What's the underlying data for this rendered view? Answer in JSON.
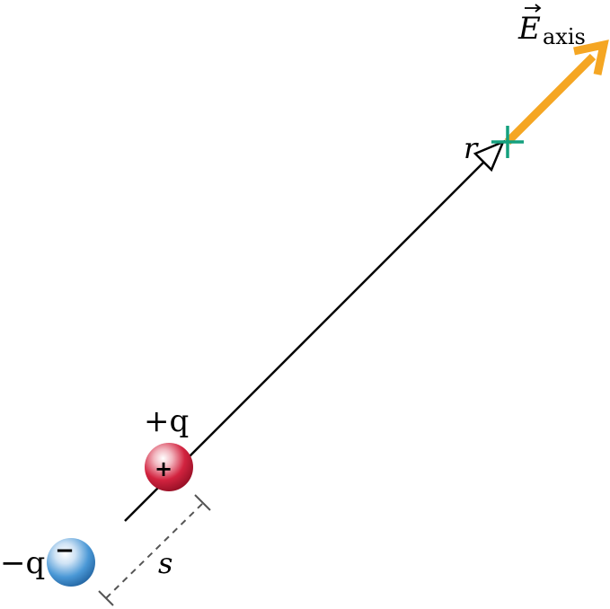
{
  "labels": {
    "positive_charge": "+q",
    "negative_charge": "−q",
    "separation": "s",
    "distance": "r",
    "field_symbol": "E",
    "field_subscript": "axis"
  },
  "charge_signs": {
    "positive": "+",
    "negative": "−"
  },
  "colors": {
    "line": "#000000",
    "field_arrow": "#F5A623",
    "field_point_marker": "#14A07E",
    "separation_dashes": "#555555",
    "positive_charge": "#C8102E",
    "negative_charge": "#3D8FD1"
  }
}
